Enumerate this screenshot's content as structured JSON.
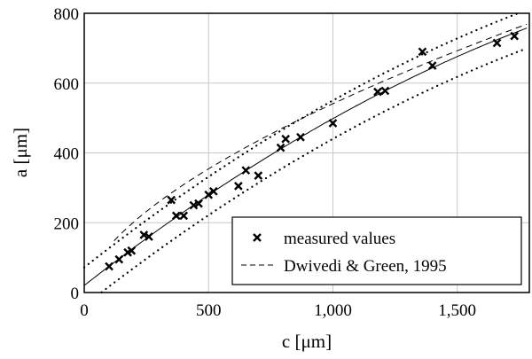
{
  "chart_data": {
    "type": "scatter",
    "xlabel": "c [μm]",
    "ylabel": "a [μm]",
    "xlim": [
      0,
      1790
    ],
    "ylim": [
      0,
      800
    ],
    "xticks": [
      0,
      500,
      1000,
      1500
    ],
    "xtick_labels": [
      "0",
      "500",
      "1,000",
      "1,500"
    ],
    "yticks": [
      0,
      200,
      400,
      600,
      800
    ],
    "ytick_labels": [
      "0",
      "200",
      "400",
      "600",
      "800"
    ],
    "grid": true,
    "legend_position": "bottom-right",
    "legend": [
      "measured values",
      "Dwivedi & Green, 1995"
    ],
    "series": [
      {
        "name": "measured values",
        "marker": "x",
        "points": [
          [
            100,
            75
          ],
          [
            140,
            95
          ],
          [
            175,
            115
          ],
          [
            190,
            120
          ],
          [
            240,
            165
          ],
          [
            260,
            160
          ],
          [
            350,
            265
          ],
          [
            370,
            220
          ],
          [
            400,
            220
          ],
          [
            440,
            250
          ],
          [
            460,
            255
          ],
          [
            500,
            280
          ],
          [
            520,
            290
          ],
          [
            620,
            305
          ],
          [
            650,
            350
          ],
          [
            700,
            335
          ],
          [
            790,
            415
          ],
          [
            810,
            440
          ],
          [
            870,
            445
          ],
          [
            1000,
            485
          ],
          [
            1180,
            575
          ],
          [
            1210,
            578
          ],
          [
            1360,
            690
          ],
          [
            1400,
            650
          ],
          [
            1660,
            715
          ],
          [
            1730,
            735
          ]
        ]
      },
      {
        "name": "Dwivedi & Green, 1995",
        "style": "dashed"
      },
      {
        "style": "solid"
      },
      {
        "style": "dotted"
      },
      {
        "style": "dotted"
      }
    ]
  }
}
